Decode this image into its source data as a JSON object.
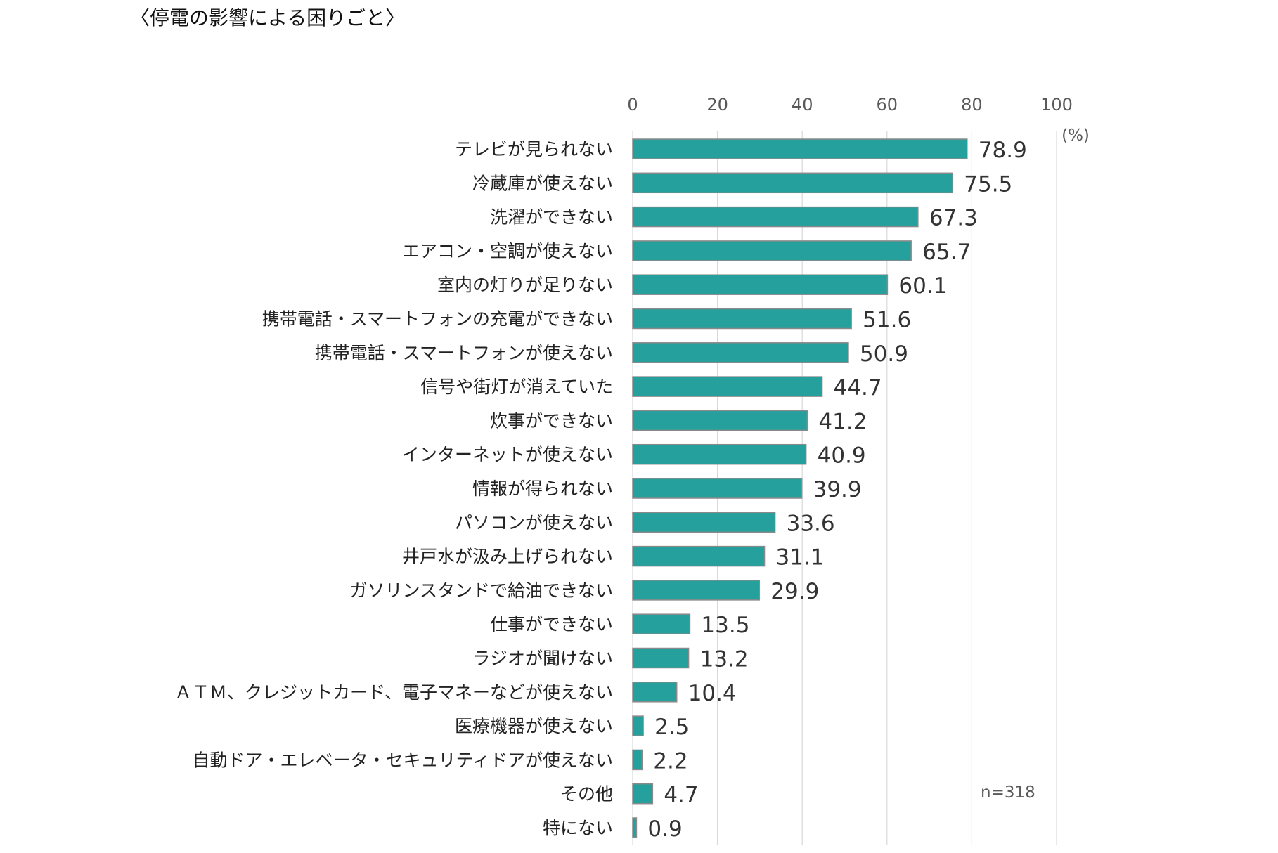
{
  "chart_data": {
    "type": "bar",
    "orientation": "horizontal",
    "title": "〈停電の影響による困りごと〉",
    "unit_label": "(%)",
    "note": "n=318",
    "xlim": [
      0,
      100
    ],
    "xticks": [
      0,
      20,
      40,
      60,
      80,
      100
    ],
    "grid": true,
    "bar_color": "#26A09D",
    "categories": [
      "テレビが見られない",
      "冷蔵庫が使えない",
      "洗濯ができない",
      "エアコン・空調が使えない",
      "室内の灯りが足りない",
      "携帯電話・スマートフォンの充電ができない",
      "携帯電話・スマートフォンが使えない",
      "信号や街灯が消えていた",
      "炊事ができない",
      "インターネットが使えない",
      "情報が得られない",
      "パソコンが使えない",
      "井戸水が汲み上げられない",
      "ガソリンスタンドで給油できない",
      "仕事ができない",
      "ラジオが聞けない",
      "ＡＴＭ、クレジットカード、電子マネーなどが使えない",
      "医療機器が使えない",
      "自動ドア・エレベータ・セキュリティドアが使えない",
      "その他",
      "特にない"
    ],
    "values": [
      78.9,
      75.5,
      67.3,
      65.7,
      60.1,
      51.6,
      50.9,
      44.7,
      41.2,
      40.9,
      39.9,
      33.6,
      31.1,
      29.9,
      13.5,
      13.2,
      10.4,
      2.5,
      2.2,
      4.7,
      0.9
    ]
  }
}
